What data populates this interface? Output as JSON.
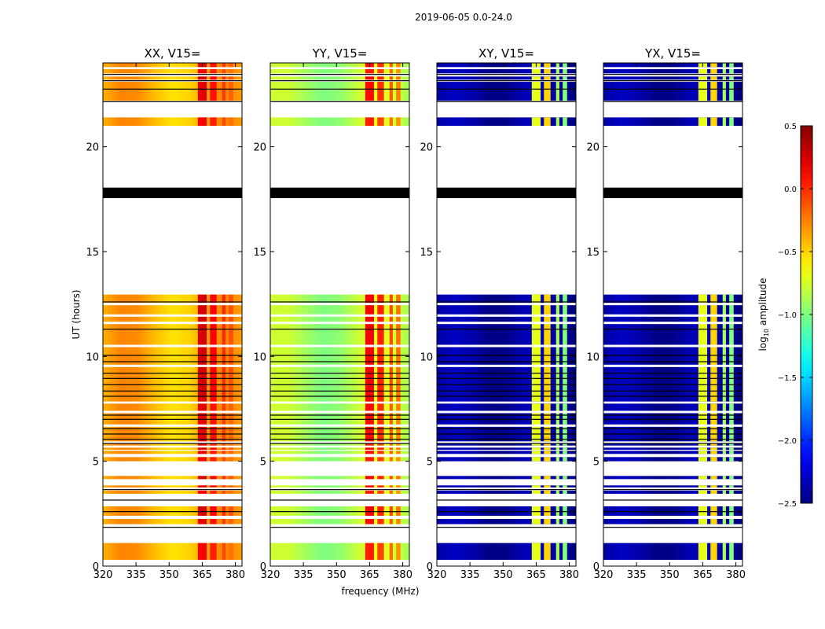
{
  "figure": {
    "suptitle": "2019-06-05 0.0-24.0"
  },
  "chart_data": {
    "type": "heatmap",
    "title": "2019-06-05 0.0-24.0",
    "xlabel": "frequency (MHz)",
    "ylabel": "UT (hours)",
    "xlim": [
      320,
      383
    ],
    "ylim": [
      0,
      24
    ],
    "xticks": [
      "320",
      "335",
      "350",
      "365",
      "380"
    ],
    "yticks": [
      "0",
      "5",
      "10",
      "15",
      "20"
    ],
    "panels": [
      {
        "title": "XX, V15=",
        "base_level": -0.4,
        "rfi_level": 0.15,
        "cross": false
      },
      {
        "title": "YY, V15=",
        "base_level": -0.8,
        "rfi_level": 0.05,
        "cross": false
      },
      {
        "title": "XY, V15=",
        "base_level": -2.4,
        "rfi_level": -0.7,
        "cross": true
      },
      {
        "title": "YX, V15=",
        "base_level": -2.4,
        "rfi_level": -0.7,
        "cross": true
      }
    ],
    "data_segments_ut": [
      [
        0.3,
        1.1
      ],
      [
        2.0,
        2.25
      ],
      [
        2.4,
        2.85
      ],
      [
        3.45,
        3.6
      ],
      [
        3.75,
        3.85
      ],
      [
        4.15,
        4.3
      ],
      [
        5.0,
        5.2
      ],
      [
        5.35,
        5.5
      ],
      [
        5.55,
        5.65
      ],
      [
        5.75,
        5.85
      ],
      [
        5.95,
        7.75
      ],
      [
        7.85,
        12.95
      ],
      [
        21.0,
        21.4
      ],
      [
        22.2,
        23.1
      ],
      [
        23.2,
        23.35
      ],
      [
        23.5,
        23.7
      ],
      [
        23.8,
        24.0
      ]
    ],
    "blank_lines_ut": [
      6.7,
      7.35,
      9.55,
      10.5,
      11.6,
      11.95,
      12.5
    ],
    "black_lines_ut": [
      6.05,
      6.3,
      6.55,
      7.0,
      7.2,
      8.1,
      8.35,
      8.65,
      8.95,
      9.2,
      9.75,
      10.05,
      11.3,
      12.6,
      2.6,
      3.15,
      3.65,
      5.85,
      22.15,
      22.75,
      23.15,
      23.45,
      1.85
    ],
    "black_band_ut": [
      17.55,
      18.05
    ],
    "rfi_bands_mhz": [
      [
        363,
        367
      ],
      [
        368.5,
        371.5
      ],
      [
        374,
        375.5
      ],
      [
        377,
        379
      ]
    ],
    "colorbar": {
      "label": "log10 amplitude",
      "label_main": "log",
      "label_sub": "10",
      "label_rest": " amplitude",
      "vmin": -2.5,
      "vmax": 0.5,
      "ticks": [
        "0.5",
        "0.0",
        "−0.5",
        "−1.0",
        "−1.5",
        "−2.0",
        "−2.5"
      ]
    }
  }
}
